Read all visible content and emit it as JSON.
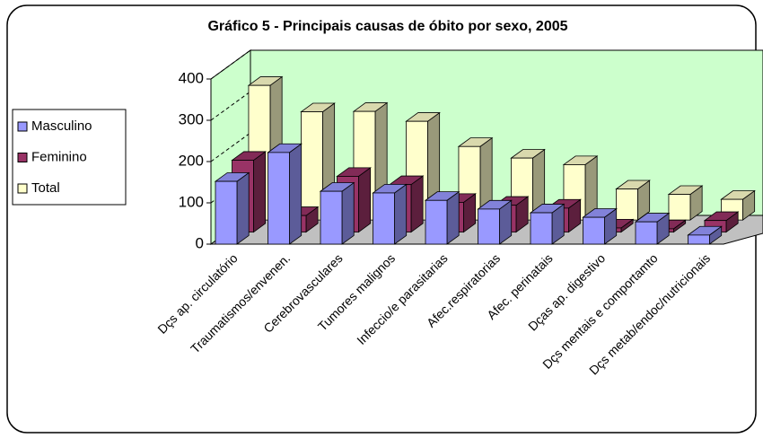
{
  "chart_data": {
    "type": "bar3d",
    "title": "Gráfico 5 - Principais causas de óbito por sexo, 2005",
    "categories": [
      "Dçs ap. circulatório",
      "Traumatismos/envenen.",
      "Cerebrovasculares",
      "Tumores malignos",
      "Infeccio/e parasitarias",
      "Afec.respiratorias",
      "Afec. perinatais",
      "Dças ap. digestivo",
      "Dçs mentais e comportamto",
      "Dçs metab/endoc/nutricionais"
    ],
    "series": [
      {
        "name": "Masculino",
        "color": "#9999ff",
        "values": [
          152,
          222,
          128,
          124,
          106,
          85,
          76,
          65,
          54,
          22
        ]
      },
      {
        "name": "Feminino",
        "color": "#993366",
        "values": [
          174,
          40,
          135,
          115,
          72,
          65,
          58,
          10,
          8,
          28
        ]
      },
      {
        "name": "Total",
        "color": "#ffffcc",
        "values": [
          326,
          262,
          263,
          239,
          178,
          150,
          134,
          75,
          62,
          50
        ]
      }
    ],
    "ylim": [
      0,
      400
    ],
    "yticks": [
      0,
      100,
      200,
      300,
      400
    ],
    "grid": true,
    "legend": "left"
  }
}
